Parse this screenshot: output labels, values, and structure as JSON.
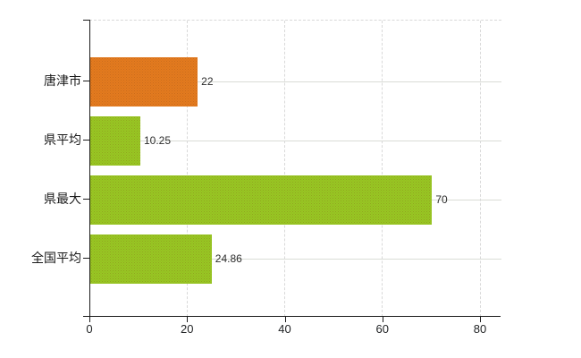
{
  "chart_data": {
    "type": "bar",
    "orientation": "horizontal",
    "title": "",
    "xlabel": "",
    "ylabel": "",
    "categories": [
      "唐津市",
      "県平均",
      "県最大",
      "全国平均"
    ],
    "values": [
      22,
      10.25,
      70,
      24.86
    ],
    "value_labels": [
      "22",
      "10.25",
      "70",
      "24.86"
    ],
    "bar_colors": [
      "#e0771b",
      "#95c220",
      "#95c220",
      "#95c220"
    ],
    "x_tick_labels": [
      "0",
      "20",
      "40",
      "60",
      "80"
    ],
    "x_tick_values": [
      0,
      20,
      40,
      60,
      80
    ],
    "xlim": [
      0,
      84.4
    ],
    "grid": true,
    "legend": false,
    "colors": {
      "background": "#ffffff",
      "axis": "#1a1a1a",
      "gridline": "#d9d9d9",
      "value_label": "#2e2e2e",
      "category_label": "#1a1a1a"
    }
  }
}
